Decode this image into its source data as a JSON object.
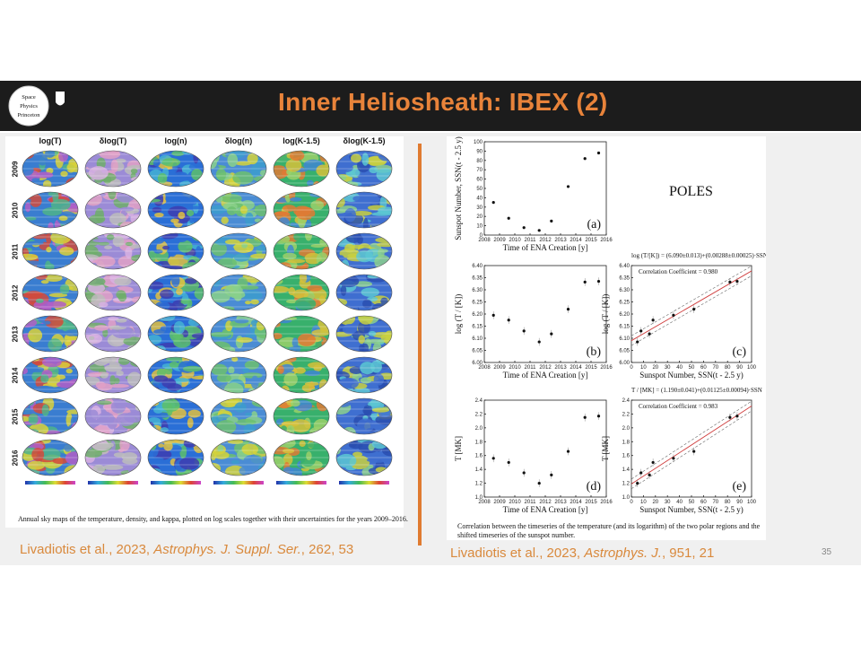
{
  "slide": {
    "title": "Inner Heliosheath:  IBEX  (2)",
    "page_number": "35",
    "colors": {
      "title": "#e8833a",
      "band": "#1c1c1c",
      "reference": "#d9893c",
      "divider": "#e07b30"
    }
  },
  "logo": {
    "line1": "Space",
    "line2": "Physics",
    "line3": "Princeton"
  },
  "left_figure": {
    "column_headers": [
      "log(T)",
      "δlog(T)",
      "log(n)",
      "δlog(n)",
      "log(K-1.5)",
      "δlog(K-1.5)"
    ],
    "years": [
      "2009",
      "2010",
      "2011",
      "2012",
      "2013",
      "2014",
      "2015",
      "2016"
    ],
    "caption": "Annual sky maps of the temperature, density, and kappa, plotted on log scales together with their uncertainties for the years 2009–2016."
  },
  "left_reference": {
    "text": "Livadiotis et al., 2023, ",
    "journal": "Astrophys. J. Suppl. Ser.",
    "tail": ", 262, 53"
  },
  "right_reference": {
    "text": "Livadiotis et al., 2023, ",
    "journal": "Astrophys. J.",
    "tail": ", 951, 21"
  },
  "right_figure": {
    "poles_label": "POLES",
    "caption": "Correlation between the timeseries of the temperature (and its logarithm) of the two polar regions and the shifted timeseries of the sunspot number."
  },
  "chart_data": [
    {
      "type": "scatter",
      "panel": "(a)",
      "xlabel": "Time of ENA Creation [y]",
      "ylabel": "Sunspot Number, SSN(t - 2.5 y)",
      "xlim": [
        2008,
        2016
      ],
      "ylim": [
        0,
        100
      ],
      "x": [
        2008.6,
        2009.6,
        2010.6,
        2011.6,
        2012.4,
        2013.5,
        2014.6,
        2015.5
      ],
      "y": [
        35,
        18,
        8,
        5,
        15,
        52,
        82,
        88
      ]
    },
    {
      "type": "scatter",
      "panel": "(b)",
      "xlabel": "Time of ENA Creation [y]",
      "ylabel": "log (T / [K])",
      "xlim": [
        2008,
        2016
      ],
      "ylim": [
        6.0,
        6.4
      ],
      "x": [
        2008.6,
        2009.6,
        2010.6,
        2011.6,
        2012.4,
        2013.5,
        2014.6,
        2015.5
      ],
      "y": [
        6.195,
        6.175,
        6.13,
        6.085,
        6.118,
        6.22,
        6.332,
        6.335
      ]
    },
    {
      "type": "scatter",
      "panel": "(c)",
      "title": "log (T/[K]) = (6.090±0.013)+(0.00288±0.00025)·SSN",
      "annotation": "Correlation Coefficient = 0.980",
      "xlabel": "Sunspot Number, SSN(t - 2.5 y)",
      "ylabel": "log (T / [K])",
      "xlim": [
        0,
        100
      ],
      "ylim": [
        6.0,
        6.4
      ],
      "x": [
        5,
        8,
        15,
        18,
        35,
        52,
        82,
        88
      ],
      "y": [
        6.085,
        6.13,
        6.118,
        6.175,
        6.195,
        6.22,
        6.332,
        6.335
      ],
      "fit": {
        "intercept": 6.09,
        "slope": 0.00288
      }
    },
    {
      "type": "scatter",
      "panel": "(d)",
      "xlabel": "Time of ENA Creation [y]",
      "ylabel": "T [MK]",
      "xlim": [
        2008,
        2016
      ],
      "ylim": [
        1.0,
        2.4
      ],
      "x": [
        2008.6,
        2009.6,
        2010.6,
        2011.6,
        2012.4,
        2013.5,
        2014.6,
        2015.5
      ],
      "y": [
        1.56,
        1.5,
        1.35,
        1.2,
        1.32,
        1.66,
        2.15,
        2.17
      ]
    },
    {
      "type": "scatter",
      "panel": "(e)",
      "title": "T / [MK] = (1.190±0.041)+(0.01125±0.00094)·SSN",
      "annotation": "Correlation Coefficient = 0.983",
      "xlabel": "Sunspot Number, SSN(t - 2.5 y)",
      "ylabel": "T [MK]",
      "xlim": [
        0,
        100
      ],
      "ylim": [
        1.0,
        2.4
      ],
      "x": [
        5,
        8,
        15,
        18,
        35,
        52,
        82,
        88
      ],
      "y": [
        1.2,
        1.35,
        1.32,
        1.5,
        1.56,
        1.66,
        2.15,
        2.17
      ],
      "fit": {
        "intercept": 1.19,
        "slope": 0.01125
      }
    }
  ]
}
